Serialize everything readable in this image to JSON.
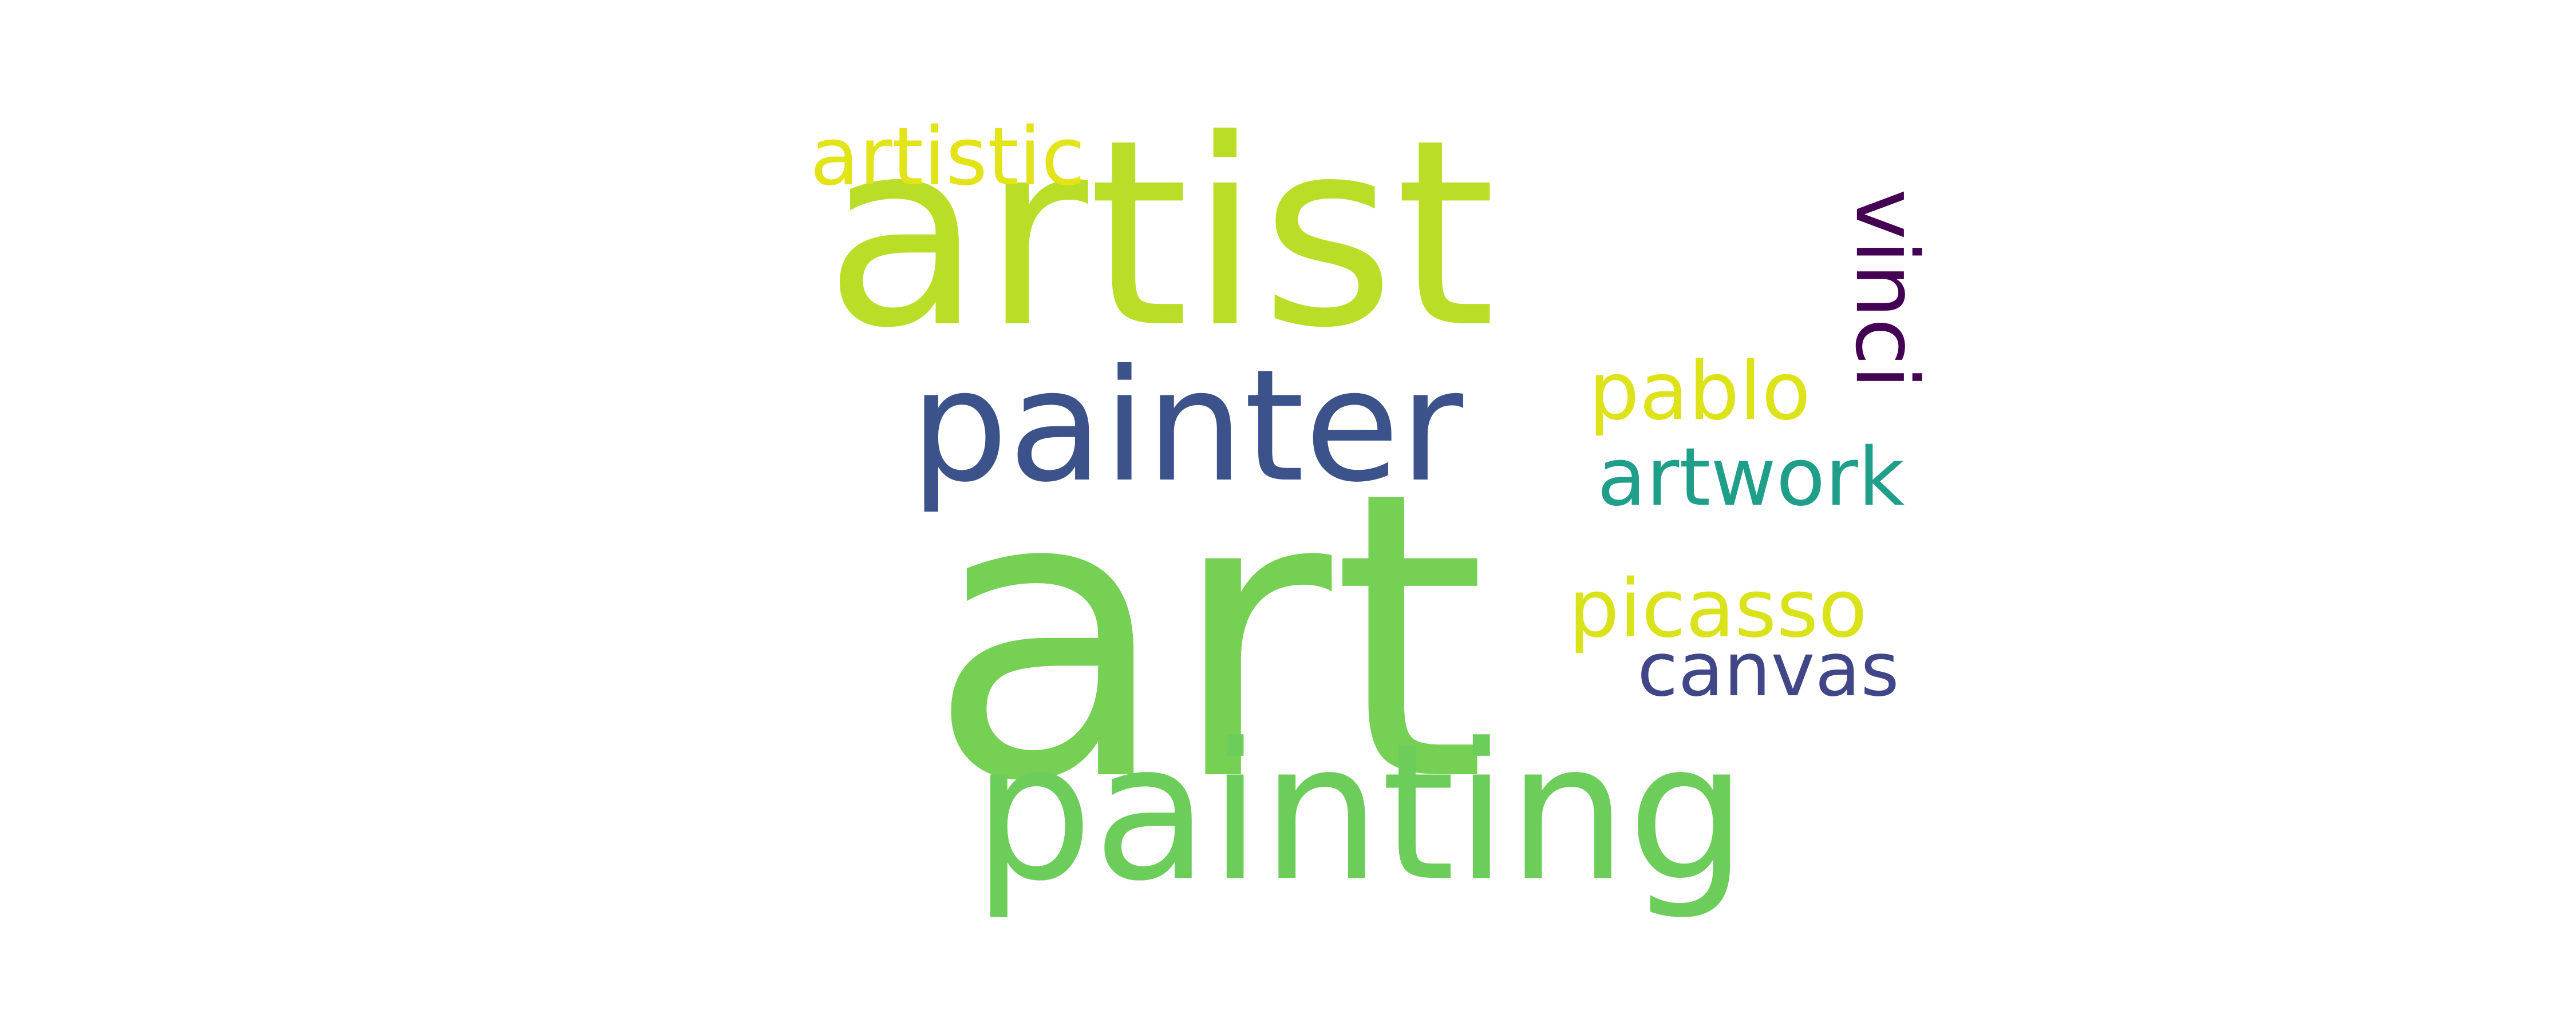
{
  "word_cloud": {
    "words": [
      {
        "text": "art",
        "color": "#75d054",
        "orientation": "horizontal"
      },
      {
        "text": "artist",
        "color": "#bade28",
        "orientation": "horizontal"
      },
      {
        "text": "painting",
        "color": "#6ccd5a",
        "orientation": "horizontal"
      },
      {
        "text": "painter",
        "color": "#3b528b",
        "orientation": "horizontal"
      },
      {
        "text": "artistic",
        "color": "#e2e418",
        "orientation": "horizontal"
      },
      {
        "text": "vinci",
        "color": "#440154",
        "orientation": "vertical"
      },
      {
        "text": "pablo",
        "color": "#dde318",
        "orientation": "horizontal"
      },
      {
        "text": "artwork",
        "color": "#1f9e89",
        "orientation": "horizontal"
      },
      {
        "text": "picasso",
        "color": "#dae319",
        "orientation": "horizontal"
      },
      {
        "text": "canvas",
        "color": "#404688",
        "orientation": "horizontal"
      }
    ]
  }
}
